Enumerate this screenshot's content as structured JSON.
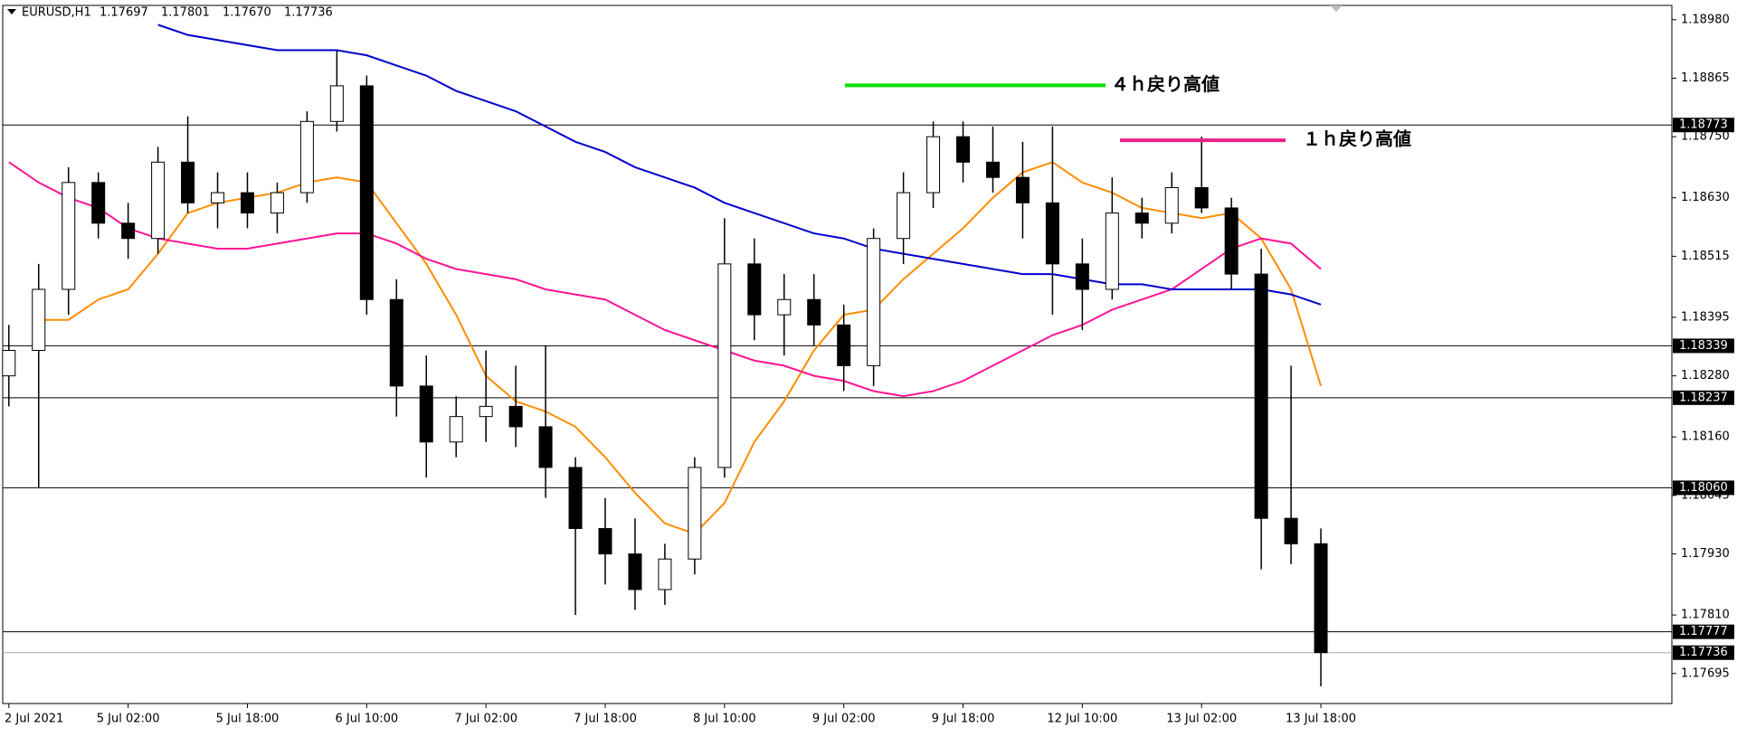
{
  "chart_data": {
    "type": "candlestick",
    "title": "EURUSD,H1",
    "header_ohlc": [
      {
        "value": 1.17697,
        "label": "1.17697"
      },
      {
        "value": 1.17801,
        "label": "1.17801"
      },
      {
        "value": 1.1767,
        "label": "1.17670"
      },
      {
        "value": 1.17736,
        "label": "1.17736"
      }
    ],
    "categories": [
      "2 Jul 2021",
      null,
      null,
      null,
      "5 Jul 02:00",
      null,
      null,
      null,
      "5 Jul 18:00",
      null,
      null,
      null,
      "6 Jul 10:00",
      null,
      null,
      null,
      "7 Jul 02:00",
      null,
      null,
      null,
      "7 Jul 18:00",
      null,
      null,
      null,
      "8 Jul 10:00",
      null,
      null,
      null,
      "9 Jul 02:00",
      null,
      null,
      null,
      "9 Jul 18:00",
      null,
      null,
      null,
      "12 Jul 10:00",
      null,
      null,
      null,
      "13 Jul 02:00",
      null,
      null,
      null,
      "13 Jul 18:00"
    ],
    "open": [
      1.1828,
      1.1833,
      1.1845,
      1.1866,
      1.1858,
      1.1855,
      1.187,
      1.1862,
      1.1864,
      1.186,
      1.1864,
      1.1878,
      1.1885,
      1.1843,
      1.1826,
      1.1815,
      1.182,
      1.1822,
      1.1818,
      1.181,
      1.1798,
      1.1793,
      1.1786,
      1.1792,
      1.181,
      1.185,
      1.184,
      1.1843,
      1.1838,
      1.183,
      1.1855,
      1.1864,
      1.1875,
      1.187,
      1.1867,
      1.1862,
      1.185,
      1.1845,
      1.186,
      1.1858,
      1.1865,
      1.1861,
      1.1848,
      1.18,
      1.1795
    ],
    "high": [
      1.1838,
      1.185,
      1.1869,
      1.1868,
      1.1862,
      1.1873,
      1.1879,
      1.1868,
      1.1868,
      1.1866,
      1.188,
      1.1892,
      1.1887,
      1.1847,
      1.1832,
      1.1824,
      1.1833,
      1.183,
      1.1834,
      1.1812,
      1.1804,
      1.18,
      1.1795,
      1.1812,
      1.1859,
      1.1855,
      1.1848,
      1.1848,
      1.1842,
      1.1857,
      1.1868,
      1.1878,
      1.1878,
      1.1877,
      1.1874,
      1.1877,
      1.1855,
      1.1867,
      1.1863,
      1.1868,
      1.1875,
      1.1863,
      1.1853,
      1.183,
      1.1798
    ],
    "low": [
      1.1822,
      1.1806,
      1.184,
      1.1855,
      1.1851,
      1.1852,
      1.186,
      1.1857,
      1.1857,
      1.1856,
      1.1862,
      1.1876,
      1.184,
      1.182,
      1.1808,
      1.1812,
      1.1815,
      1.1814,
      1.1804,
      1.1781,
      1.1787,
      1.1782,
      1.1783,
      1.1789,
      1.1808,
      1.1835,
      1.1832,
      1.1834,
      1.1825,
      1.1826,
      1.185,
      1.1861,
      1.1866,
      1.1864,
      1.1855,
      1.184,
      1.1837,
      1.1843,
      1.1855,
      1.1856,
      1.186,
      1.1845,
      1.179,
      1.1791,
      1.1767
    ],
    "close": [
      1.1833,
      1.1845,
      1.1866,
      1.1858,
      1.1855,
      1.187,
      1.1862,
      1.1864,
      1.186,
      1.1864,
      1.1878,
      1.1885,
      1.1843,
      1.1826,
      1.1815,
      1.182,
      1.1822,
      1.1818,
      1.181,
      1.1798,
      1.1793,
      1.1786,
      1.1792,
      1.181,
      1.185,
      1.184,
      1.1843,
      1.1838,
      1.183,
      1.1855,
      1.1864,
      1.1875,
      1.187,
      1.1867,
      1.1862,
      1.185,
      1.1845,
      1.186,
      1.1858,
      1.1865,
      1.1861,
      1.1848,
      1.18,
      1.1795,
      1.17736
    ],
    "bull_color": "#ffffff",
    "bear_color": "#000000",
    "moving_averages": [
      {
        "color": "#ff8c00",
        "values": [
          null,
          1.1839,
          1.1839,
          1.1843,
          1.1845,
          1.1852,
          1.186,
          1.1862,
          1.1863,
          1.1864,
          1.1866,
          1.1867,
          1.1866,
          1.1858,
          1.185,
          1.184,
          1.1828,
          1.1823,
          1.1821,
          1.1818,
          1.1812,
          1.1805,
          1.1799,
          1.1797,
          1.1803,
          1.1815,
          1.1823,
          1.1833,
          1.184,
          1.1841,
          1.1847,
          1.1852,
          1.1857,
          1.1863,
          1.1868,
          1.187,
          1.1866,
          1.1864,
          1.1861,
          1.186,
          1.1859,
          1.186,
          1.1855,
          1.1845,
          1.1826
        ]
      },
      {
        "color": "#ff1493",
        "values": [
          1.187,
          1.1866,
          1.1863,
          1.1861,
          1.1857,
          1.1855,
          1.1854,
          1.1853,
          1.1853,
          1.1854,
          1.1855,
          1.1856,
          1.1856,
          1.1854,
          1.1851,
          1.1849,
          1.1848,
          1.1847,
          1.1845,
          1.1844,
          1.1843,
          1.184,
          1.1837,
          1.1835,
          1.1833,
          1.1831,
          1.183,
          1.1828,
          1.1827,
          1.1825,
          1.1824,
          1.1825,
          1.1827,
          1.183,
          1.1833,
          1.1836,
          1.1838,
          1.1841,
          1.1843,
          1.1845,
          1.1849,
          1.1853,
          1.1855,
          1.1854,
          1.1849
        ]
      },
      {
        "color": "#0000cd",
        "values": [
          null,
          null,
          null,
          null,
          null,
          1.1897,
          1.1895,
          1.1894,
          1.1893,
          1.1892,
          1.1892,
          1.1892,
          1.1891,
          1.1889,
          1.1887,
          1.1884,
          1.1882,
          1.188,
          1.1877,
          1.1874,
          1.1872,
          1.1869,
          1.1867,
          1.1865,
          1.1862,
          1.186,
          1.1858,
          1.1856,
          1.1855,
          1.1853,
          1.1852,
          1.1851,
          1.185,
          1.1849,
          1.1848,
          1.1848,
          1.1847,
          1.1846,
          1.1846,
          1.1845,
          1.1845,
          1.1845,
          1.1845,
          1.1844,
          1.1842
        ]
      }
    ],
    "ylim": [
      1.17636,
      1.19008
    ],
    "yticks": [
      {
        "value": 1.1898,
        "label": "1.18980"
      },
      {
        "value": 1.18865,
        "label": "1.18865"
      },
      {
        "value": 1.1875,
        "label": "1.18750"
      },
      {
        "value": 1.1863,
        "label": "1.18630"
      },
      {
        "value": 1.18515,
        "label": "1.18515"
      },
      {
        "value": 1.18395,
        "label": "1.18395"
      },
      {
        "value": 1.1828,
        "label": "1.18280"
      },
      {
        "value": 1.1816,
        "label": "1.18160"
      },
      {
        "value": 1.18045,
        "label": "1.18045"
      },
      {
        "value": 1.1793,
        "label": "1.17930"
      },
      {
        "value": 1.1781,
        "label": "1.17810"
      },
      {
        "value": 1.17695,
        "label": "1.17695"
      }
    ],
    "levels": [
      {
        "value": 1.18773,
        "label": "1.18773"
      },
      {
        "value": 1.18339,
        "label": "1.18339"
      },
      {
        "value": 1.18237,
        "label": "1.18237"
      },
      {
        "value": 1.1806,
        "label": "1.18060"
      },
      {
        "value": 1.17777,
        "label": "1.17777"
      }
    ],
    "current_price": {
      "value": 1.17736,
      "label": "1.17736"
    },
    "annotations": [
      {
        "text": "４ｈ戻り高値",
        "value": 1.18851,
        "color": "#00e000"
      },
      {
        "text": "１ｈ戻り高値",
        "value": 1.18743,
        "color": "#e8208a"
      }
    ]
  }
}
